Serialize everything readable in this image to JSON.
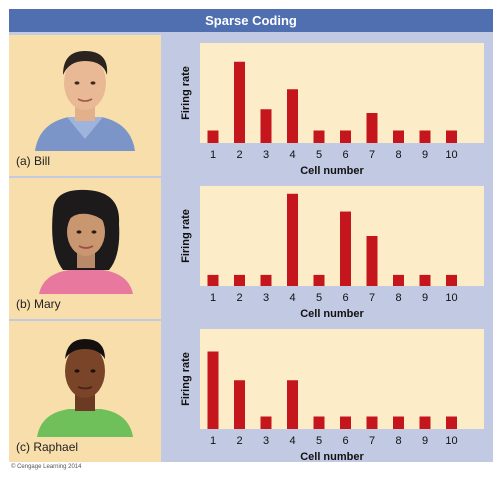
{
  "title": "Sparse Coding",
  "copyright": "© Cengage Learning 2014",
  "colors": {
    "header": "#4f6fb0",
    "panel": "#c2c9e3",
    "portrait_bg": "#f8deaa",
    "plot_bg": "#fcecc8",
    "bar": "#c4161c"
  },
  "panels": [
    {
      "label": "(a) Bill",
      "face_icon": "man-portrait-icon"
    },
    {
      "label": "(b) Mary",
      "face_icon": "woman-portrait-icon"
    },
    {
      "label": "(c) Raphael",
      "face_icon": "young-man-portrait-icon"
    }
  ],
  "chart_data": [
    {
      "type": "bar",
      "xlabel": "Cell number",
      "ylabel": "Firing rate",
      "categories": [
        "1",
        "2",
        "3",
        "4",
        "5",
        "6",
        "7",
        "8",
        "9",
        "10"
      ],
      "values": [
        1,
        6.5,
        2.7,
        4.3,
        1,
        1,
        2.4,
        1,
        1,
        1
      ],
      "ylim": [
        0,
        8
      ]
    },
    {
      "type": "bar",
      "xlabel": "Cell number",
      "ylabel": "Firing rate",
      "categories": [
        "1",
        "2",
        "3",
        "4",
        "5",
        "6",
        "7",
        "8",
        "9",
        "10"
      ],
      "values": [
        1,
        1,
        1,
        8.3,
        1,
        6.7,
        4.5,
        1,
        1,
        1
      ],
      "ylim": [
        0,
        9
      ]
    },
    {
      "type": "bar",
      "xlabel": "Cell number",
      "ylabel": "Firing rate",
      "categories": [
        "1",
        "2",
        "3",
        "4",
        "5",
        "6",
        "7",
        "8",
        "9",
        "10"
      ],
      "values": [
        6.2,
        3.9,
        1,
        3.9,
        1,
        1,
        1,
        1,
        1,
        1
      ],
      "ylim": [
        0,
        8
      ]
    }
  ]
}
